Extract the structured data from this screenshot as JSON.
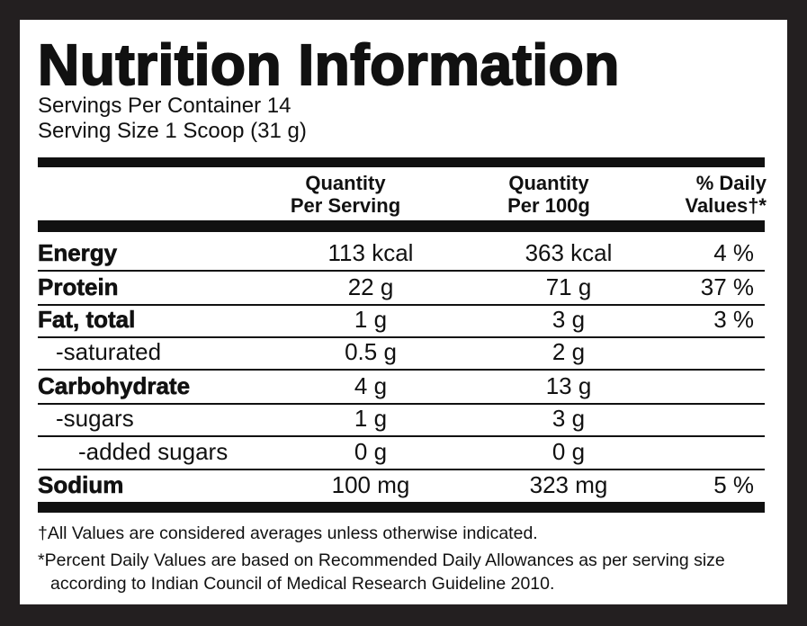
{
  "header": {
    "title": "Nutrition Information",
    "servings_per_container": "Servings Per Container 14",
    "serving_size": "Serving Size 1 Scoop (31 g)"
  },
  "table": {
    "columns": [
      [
        "Quantity",
        "Per Serving"
      ],
      [
        "Quantity",
        "Per 100g"
      ],
      [
        "% Daily",
        "Values†*"
      ]
    ],
    "rows": [
      {
        "label": "Energy",
        "per_serving": "113 kcal",
        "per_100g": "363 kcal",
        "daily_value": "4 %"
      },
      {
        "label": "Protein",
        "per_serving": "22 g",
        "per_100g": "71 g",
        "daily_value": "37 %"
      },
      {
        "label": "Fat, total",
        "per_serving": "1 g",
        "per_100g": "3 g",
        "daily_value": "3 %"
      },
      {
        "label": "-saturated",
        "per_serving": "0.5 g",
        "per_100g": "2 g"
      },
      {
        "label": "Carbohydrate",
        "per_serving": "4 g",
        "per_100g": "13 g"
      },
      {
        "label": "-sugars",
        "per_serving": "1 g",
        "per_100g": "3 g"
      },
      {
        "label": "-added sugars",
        "per_serving": "0 g",
        "per_100g": "0 g"
      },
      {
        "label": "Sodium",
        "per_serving": "100 mg",
        "per_100g": "323 mg",
        "daily_value": "5 %"
      }
    ]
  },
  "footnotes": [
    "†All Values are considered averages unless otherwise indicated.",
    "*Percent Daily Values are based on Recommended Daily Allowances as per serving size according to Indian Council of Medical Research Guideline 2010."
  ]
}
